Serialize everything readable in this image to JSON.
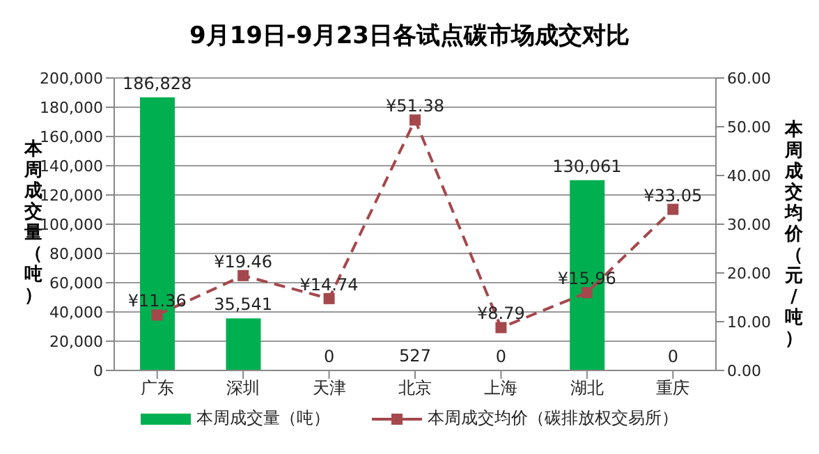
{
  "chart_data": {
    "type": "bar",
    "title": "9月19日-9月23日各试点碳市场成交对比",
    "ylabel": "本周成交量（吨）",
    "y2label": "本周成交均价（元/吨）",
    "categories": [
      "广东",
      "深圳",
      "天津",
      "北京",
      "上海",
      "湖北",
      "重庆"
    ],
    "series": [
      {
        "name": "本周成交量（吨）",
        "type": "bar",
        "color": "#00b050",
        "values": [
          186828,
          35541,
          0,
          527,
          0,
          130061,
          0
        ],
        "value_labels": [
          "186,828",
          "35,541",
          "0",
          "527",
          "0",
          "130,061",
          "0"
        ]
      },
      {
        "name": "本周成交均价（碳排放权交易所）",
        "type": "line",
        "axis": "y2",
        "color": "#a5484d",
        "marker": "square",
        "line_style": "dashed",
        "values": [
          11.36,
          19.46,
          14.74,
          51.38,
          8.79,
          15.96,
          33.05
        ],
        "value_labels": [
          "¥11.36",
          "¥19.46",
          "¥14.74",
          "¥51.38",
          "¥8.79",
          "¥15.96",
          "¥33.05"
        ]
      }
    ],
    "ylim": [
      0,
      200000
    ],
    "yticks": [
      {
        "value": 0,
        "label": "0"
      },
      {
        "value": 20000,
        "label": "20,000"
      },
      {
        "value": 40000,
        "label": "40,000"
      },
      {
        "value": 60000,
        "label": "60,000"
      },
      {
        "value": 80000,
        "label": "80,000"
      },
      {
        "value": 100000,
        "label": "100,000"
      },
      {
        "value": 120000,
        "label": "120,000"
      },
      {
        "value": 140000,
        "label": "140,000"
      },
      {
        "value": 160000,
        "label": "160,000"
      },
      {
        "value": 180000,
        "label": "180,000"
      },
      {
        "value": 200000,
        "label": "200,000"
      }
    ],
    "y2lim": [
      0,
      60
    ],
    "y2ticks": [
      {
        "value": 0,
        "label": "0.00"
      },
      {
        "value": 10,
        "label": "10.00"
      },
      {
        "value": 20,
        "label": "20.00"
      },
      {
        "value": 30,
        "label": "30.00"
      },
      {
        "value": 40,
        "label": "40.00"
      },
      {
        "value": 50,
        "label": "50.00"
      },
      {
        "value": 60,
        "label": "60.00"
      }
    ],
    "grid": "y",
    "legend": "bottom"
  }
}
